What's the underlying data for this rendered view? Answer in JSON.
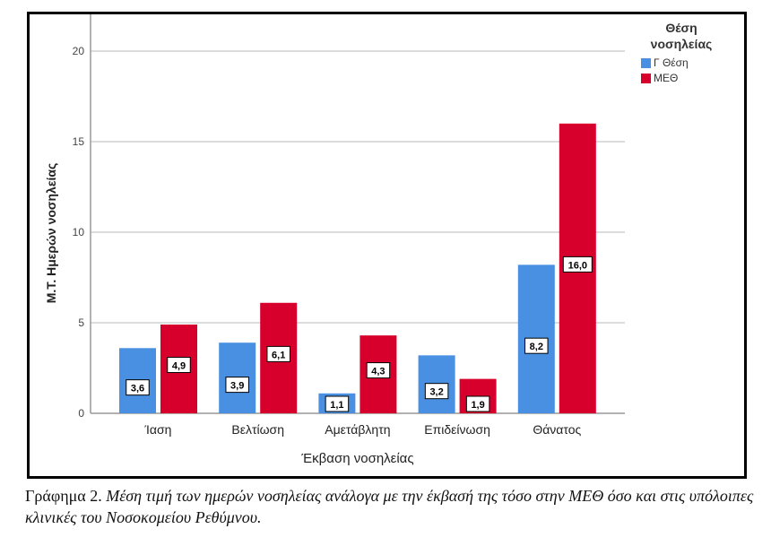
{
  "chart_data": {
    "type": "bar",
    "title": "",
    "xlabel": "Έκβαση νοσηλείας",
    "ylabel": "Μ.Τ. Ημερών νοσηλείας",
    "ylim": [
      0,
      21
    ],
    "yticks": [
      0,
      5,
      10,
      15,
      20
    ],
    "grid": true,
    "categories": [
      "Ίαση",
      "Βελτίωση",
      "Αμετάβλητη",
      "Επιδείνωση",
      "Θάνατος"
    ],
    "series": [
      {
        "name": "Γ Θέση",
        "color": "#4a90e2",
        "values": [
          3.6,
          3.9,
          1.1,
          3.2,
          8.2
        ],
        "labels": [
          "3,6",
          "3,9",
          "1,1",
          "3,2",
          "8,2"
        ]
      },
      {
        "name": "ΜΕΘ",
        "color": "#d7002d",
        "values": [
          4.9,
          6.1,
          4.3,
          1.9,
          16.0
        ],
        "labels": [
          "4,9",
          "6,1",
          "4,3",
          "1,9",
          "16,0"
        ]
      }
    ],
    "legend": {
      "title": "Θέση νοσηλείας",
      "position": "top-right"
    }
  },
  "legend": {
    "title_line1": "Θέση",
    "title_line2": "νοσηλείας",
    "items": [
      {
        "label": "Γ Θέση",
        "color": "#4a90e2"
      },
      {
        "label": "ΜΕΘ",
        "color": "#d7002d"
      }
    ]
  },
  "caption": {
    "lead": "Γράφημα 2.",
    "text": "Μέση τιμή των ημερών νοσηλείας ανάλογα με την έκβασή της τόσο στην ΜΕΘ όσο και στις υπόλοιπες κλινικές του Νοσοκομείου Ρεθύμνου."
  }
}
